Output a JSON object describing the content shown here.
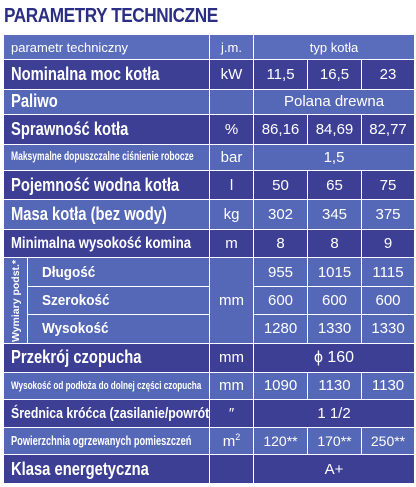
{
  "title": "PARAMETRY TECHNICZNE",
  "header": {
    "param": "parametr techniczny",
    "unit": "j.m.",
    "type": "typ kotła"
  },
  "rows": [
    {
      "label": "Nominalna moc kotła",
      "unit": "kW",
      "values": [
        "11,5",
        "16,5",
        "23"
      ]
    },
    {
      "label": "Paliwo",
      "unit": "",
      "merged": "Polana drewna"
    },
    {
      "label": "Sprawność kotła",
      "unit": "%",
      "values": [
        "86,16",
        "84,69",
        "82,77"
      ]
    },
    {
      "label": "Maksymalne dopuszczalne ciśnienie robocze",
      "unit": "bar",
      "merged": "1,5"
    },
    {
      "label": "Pojemność wodna kotła",
      "unit": "l",
      "values": [
        "50",
        "65",
        "75"
      ]
    },
    {
      "label": "Masa kotła (bez wody)",
      "unit": "kg",
      "values": [
        "302",
        "345",
        "375"
      ]
    },
    {
      "label": "Minimalna wysokość komina",
      "unit": "m",
      "values": [
        "8",
        "8",
        "9"
      ]
    }
  ],
  "dims": {
    "group_label": "Wymiary podst.*",
    "unit": "mm",
    "rows": [
      {
        "label": "Długość",
        "values": [
          "955",
          "1015",
          "1115"
        ]
      },
      {
        "label": "Szerokość",
        "values": [
          "600",
          "600",
          "600"
        ]
      },
      {
        "label": "Wysokość",
        "values": [
          "1280",
          "1330",
          "1330"
        ]
      }
    ]
  },
  "rows2": [
    {
      "label": "Przekrój czopucha",
      "unit": "mm",
      "merged": "ϕ 160"
    },
    {
      "label": "Wysokość od podłoża do dolnej części czopucha",
      "unit": "mm",
      "values": [
        "1090",
        "1130",
        "1130"
      ]
    },
    {
      "label": "Średnica króćca (zasilanie/powrót)",
      "unit": "″",
      "merged": "1 1/2"
    },
    {
      "label": "Powierzchnia ogrzewanych pomieszczeń",
      "unit": "m",
      "unit_sup": "2",
      "values": [
        "120**",
        "170**",
        "250**"
      ]
    },
    {
      "label": "Klasa energetyczna",
      "unit": "",
      "merged": "A+"
    }
  ]
}
